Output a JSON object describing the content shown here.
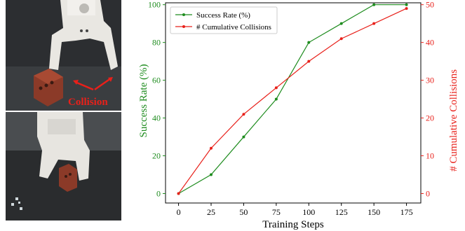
{
  "photos": {
    "top": {
      "annotation": "Collision",
      "annotation_color": "#e8201a"
    },
    "bottom": {}
  },
  "chart_data": {
    "type": "line",
    "x": [
      0,
      25,
      50,
      75,
      100,
      125,
      150,
      175
    ],
    "xlabel": "Training Steps",
    "ylabel": "Success Rate (%)",
    "y2label": "# Cumulative Collisions",
    "xlim": [
      -10,
      186
    ],
    "ylim": [
      -5,
      101
    ],
    "y2lim": [
      -2.5,
      50.5
    ],
    "xticks": [
      "0",
      "25",
      "50",
      "75",
      "100",
      "125",
      "150",
      "175"
    ],
    "yticks": [
      "0",
      "20",
      "40",
      "60",
      "80",
      "100"
    ],
    "y2ticks": [
      "0",
      "10",
      "20",
      "30",
      "40",
      "50"
    ],
    "legend_position": "top-left",
    "grid": false,
    "series": [
      {
        "name": "Success Rate (%)",
        "axis": "left",
        "color": "#1e8c1e",
        "values": [
          0,
          10,
          30,
          50,
          80,
          90,
          100,
          100
        ]
      },
      {
        "name": "# Cumulative Collisions",
        "axis": "right",
        "color": "#e8201a",
        "values": [
          0,
          12,
          21,
          28,
          35,
          41,
          45,
          49
        ]
      }
    ]
  }
}
